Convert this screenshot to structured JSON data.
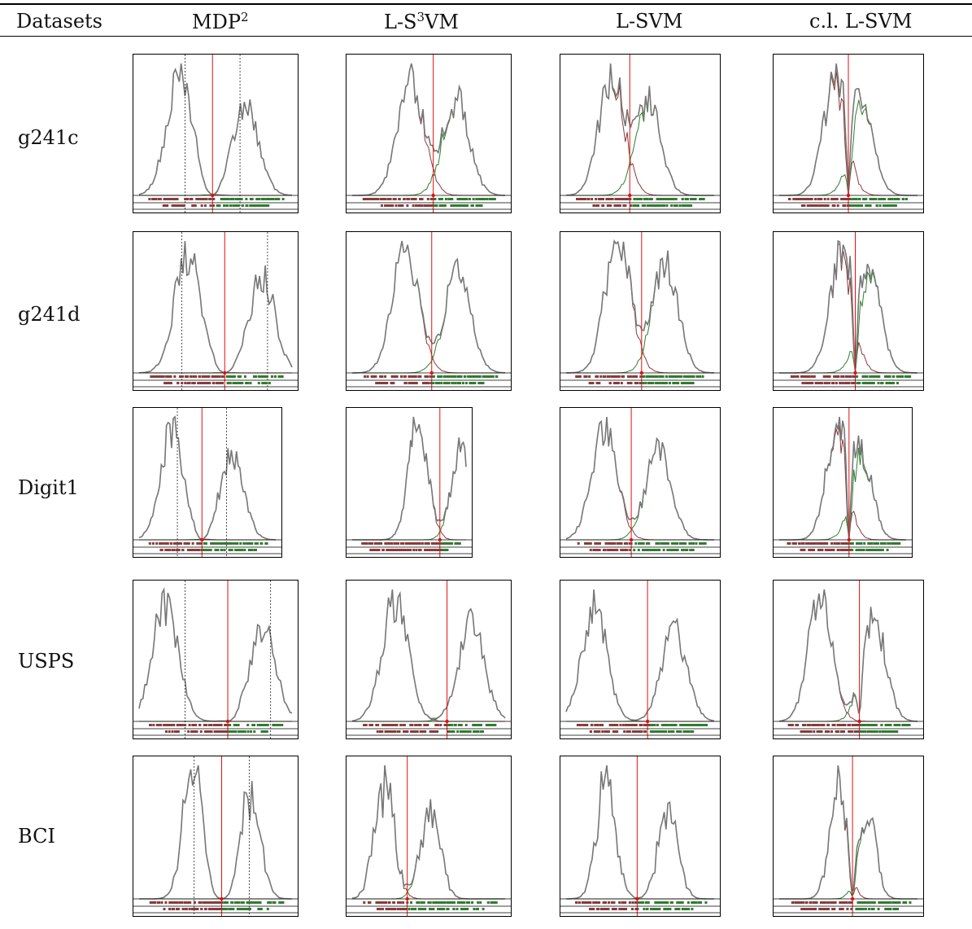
{
  "table": {
    "headers": [
      {
        "base": "Datasets",
        "sup": "",
        "tail": ""
      },
      {
        "base": "MDP",
        "sup": "2",
        "tail": ""
      },
      {
        "base": "L-S",
        "sup": "3",
        "tail": "VM"
      },
      {
        "base": "L-SVM",
        "sup": "",
        "tail": ""
      },
      {
        "base": "c.l. L-SVM",
        "sup": "",
        "tail": ""
      }
    ],
    "rows": [
      "g241c",
      "g241d",
      "Digit1",
      "USPS",
      "BCI"
    ]
  },
  "colors": {
    "class_a": "#8b3a3a",
    "class_b": "#2e7d2e",
    "total": "#777777",
    "boundary": "#e01010",
    "margin": "#222222"
  }
}
